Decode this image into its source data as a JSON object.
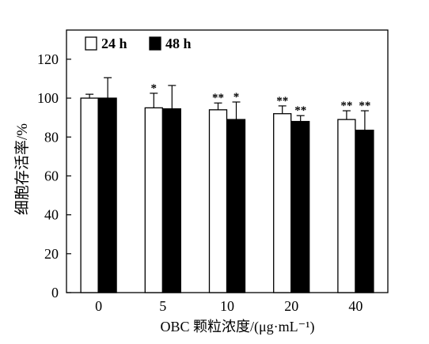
{
  "chart_data": {
    "type": "bar",
    "xlabel": "OBC 颗粒浓度/(μg·mL⁻¹)",
    "ylabel": "细胞存活率/%",
    "ylim": [
      0,
      135
    ],
    "yticks": [
      "0",
      "20",
      "40",
      "60",
      "80",
      "100",
      "120"
    ],
    "categories": [
      "0",
      "5",
      "10",
      "20",
      "40"
    ],
    "legend_position": "top-left",
    "series": [
      {
        "name": "24 h",
        "color": "#ffffff",
        "values": [
          100,
          95,
          94,
          92,
          89
        ],
        "errors": [
          2,
          7.5,
          3.5,
          4,
          4.5
        ],
        "significance": [
          "",
          "*",
          "**",
          "**",
          "**"
        ]
      },
      {
        "name": "48 h",
        "color": "#000000",
        "values": [
          100,
          94.5,
          89,
          88,
          83.5
        ],
        "errors": [
          10.5,
          12,
          9,
          3,
          10
        ],
        "significance": [
          "",
          "",
          "*",
          "**",
          "**"
        ]
      }
    ]
  }
}
